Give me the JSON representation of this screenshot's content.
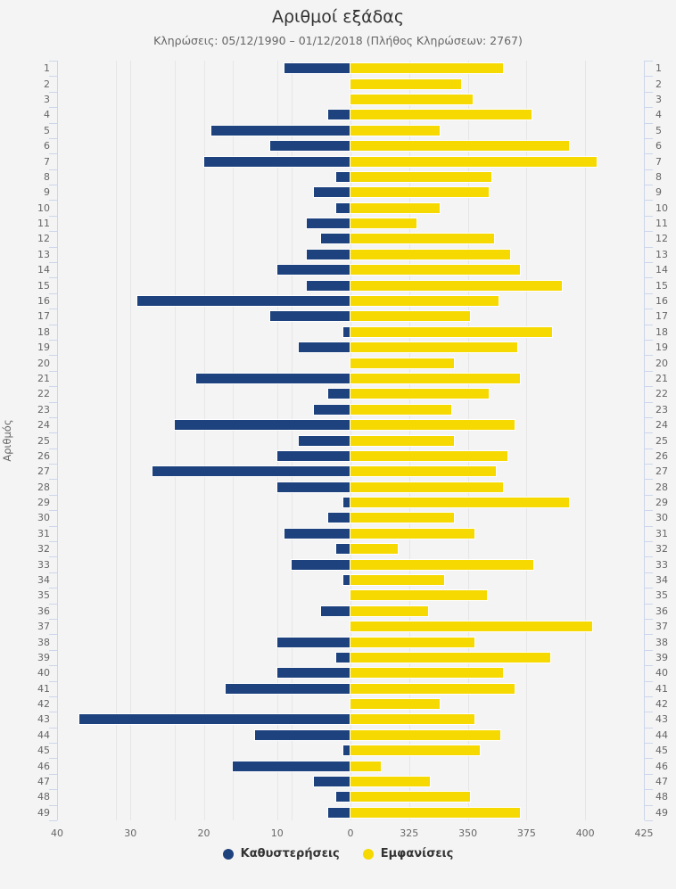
{
  "chart_data": {
    "type": "bar",
    "title": "Αριθμοί εξάδας",
    "subtitle": "Κληρώσεις: 05/12/1990 – 01/12/2018 (Πλήθος Κληρώσεων: 2767)",
    "ylabel": "Αριθμός",
    "categories": [
      1,
      2,
      3,
      4,
      5,
      6,
      7,
      8,
      9,
      10,
      11,
      12,
      13,
      14,
      15,
      16,
      17,
      18,
      19,
      20,
      21,
      22,
      23,
      24,
      25,
      26,
      27,
      28,
      29,
      30,
      31,
      32,
      33,
      34,
      35,
      36,
      37,
      38,
      39,
      40,
      41,
      42,
      43,
      44,
      45,
      46,
      47,
      48,
      49
    ],
    "series": [
      {
        "name": "Καθυστερήσεις",
        "color": "#1d427e",
        "axis": "delays",
        "values": [
          9,
          0,
          0,
          3,
          19,
          11,
          20,
          2,
          5,
          2,
          6,
          4,
          6,
          10,
          6,
          29,
          11,
          1,
          7,
          0,
          21,
          3,
          5,
          24,
          7,
          10,
          27,
          10,
          1,
          3,
          9,
          2,
          8,
          1,
          0,
          4,
          0,
          10,
          2,
          10,
          17,
          0,
          37,
          13,
          1,
          16,
          5,
          2,
          3
        ]
      },
      {
        "name": "Εμφανίσεις",
        "color": "#f5d900",
        "axis": "appearances",
        "values": [
          365,
          347,
          352,
          377,
          338,
          393,
          405,
          360,
          359,
          338,
          328,
          361,
          368,
          372,
          390,
          363,
          351,
          386,
          371,
          344,
          372,
          359,
          343,
          370,
          344,
          367,
          362,
          365,
          393,
          344,
          353,
          320,
          378,
          340,
          358,
          333,
          403,
          353,
          385,
          365,
          370,
          338,
          353,
          364,
          355,
          313,
          334,
          351,
          372
        ]
      }
    ],
    "axes": {
      "delays": {
        "min": 0,
        "max": 40,
        "direction": "left-of-zero",
        "ticks": [
          40,
          30,
          20,
          10,
          0
        ]
      },
      "appearances": {
        "min": 300,
        "max": 425,
        "direction": "right-of-zero",
        "ticks": [
          325,
          350,
          375,
          400,
          425
        ]
      }
    },
    "grid": true,
    "legend_position": "bottom",
    "colors": {
      "background": "#f4f4f4",
      "gridline": "#e6e6e6",
      "axis_line": "#ccd6eb",
      "label_text": "#666666",
      "title_text": "#333333"
    }
  }
}
